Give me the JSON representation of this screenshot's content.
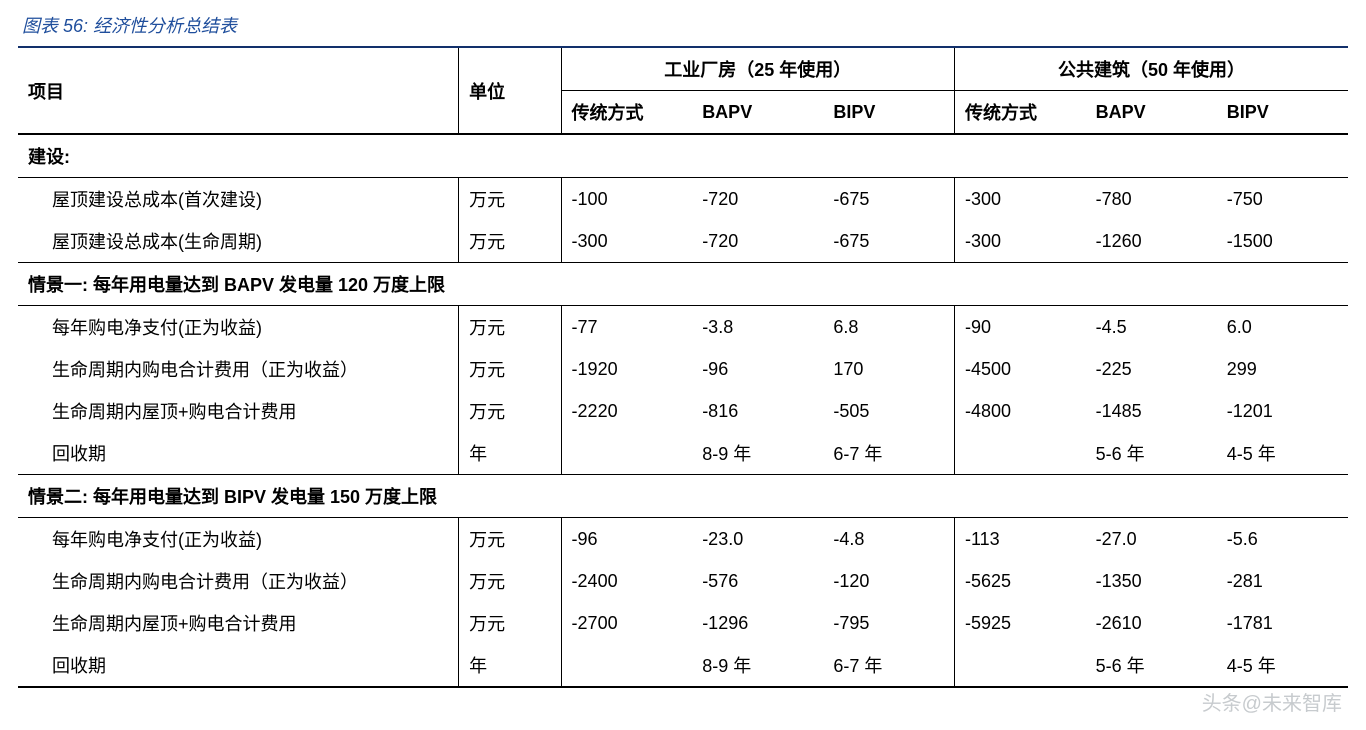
{
  "caption": "图表 56:  经济性分析总结表",
  "colors": {
    "caption": "#1f4e9c",
    "rule_heavy": "#12306b",
    "rule": "#000000",
    "text": "#000000",
    "background": "#ffffff"
  },
  "typography": {
    "caption_fontsize_pt": 14,
    "body_fontsize_pt": 14,
    "header_weight": 700,
    "section_weight": 700
  },
  "table": {
    "type": "table",
    "header": {
      "item": "项目",
      "unit": "单位",
      "group1": "工业厂房（25 年使用）",
      "group2": "公共建筑（50 年使用）",
      "sub": [
        "传统方式",
        "BAPV",
        "BIPV",
        "传统方式",
        "BAPV",
        "BIPV"
      ]
    },
    "sections": [
      {
        "title": "建设:",
        "rows": [
          {
            "label": "屋顶建设总成本(首次建设)",
            "unit": "万元",
            "v": [
              "-100",
              "-720",
              "-675",
              "-300",
              "-780",
              "-750"
            ]
          },
          {
            "label": "屋顶建设总成本(生命周期)",
            "unit": "万元",
            "v": [
              "-300",
              "-720",
              "-675",
              "-300",
              "-1260",
              "-1500"
            ]
          }
        ]
      },
      {
        "title": "情景一:  每年用电量达到 BAPV 发电量 120 万度上限",
        "rows": [
          {
            "label": "每年购电净支付(正为收益)",
            "unit": "万元",
            "v": [
              "-77",
              "-3.8",
              "6.8",
              "-90",
              "-4.5",
              "6.0"
            ]
          },
          {
            "label": "生命周期内购电合计费用（正为收益）",
            "unit": "万元",
            "v": [
              "-1920",
              "-96",
              "170",
              "-4500",
              "-225",
              "299"
            ]
          },
          {
            "label": "生命周期内屋顶+购电合计费用",
            "unit": "万元",
            "v": [
              "-2220",
              "-816",
              "-505",
              "-4800",
              "-1485",
              "-1201"
            ]
          },
          {
            "label": "回收期",
            "unit": "年",
            "v": [
              "",
              "8-9 年",
              "6-7 年",
              "",
              "5-6 年",
              "4-5 年"
            ]
          }
        ]
      },
      {
        "title": "情景二:  每年用电量达到 BIPV 发电量 150 万度上限",
        "rows": [
          {
            "label": "每年购电净支付(正为收益)",
            "unit": "万元",
            "v": [
              "-96",
              "-23.0",
              "-4.8",
              "-113",
              "-27.0",
              "-5.6"
            ]
          },
          {
            "label": "生命周期内购电合计费用（正为收益）",
            "unit": "万元",
            "v": [
              "-2400",
              "-576",
              "-120",
              "-5625",
              "-1350",
              "-281"
            ]
          },
          {
            "label": "生命周期内屋顶+购电合计费用",
            "unit": "万元",
            "v": [
              "-2700",
              "-1296",
              "-795",
              "-5925",
              "-2610",
              "-1781"
            ]
          },
          {
            "label": "回收期",
            "unit": "年",
            "v": [
              "",
              "8-9 年",
              "6-7 年",
              "",
              "5-6 年",
              "4-5 年"
            ]
          }
        ]
      }
    ]
  },
  "watermark": "头条@未来智库"
}
